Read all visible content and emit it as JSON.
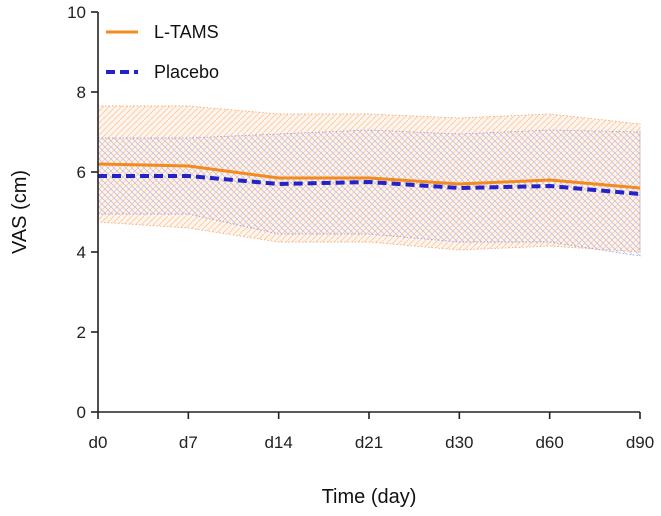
{
  "chart_data": {
    "type": "line",
    "title": "",
    "xlabel": "Time (day)",
    "ylabel": "VAS (cm)",
    "categories": [
      "d0",
      "d7",
      "d14",
      "d21",
      "d30",
      "d60",
      "d90"
    ],
    "ylim": [
      0,
      10
    ],
    "yticks": [
      0,
      2,
      4,
      6,
      8,
      10
    ],
    "grid": false,
    "legend_position": "top-left",
    "series": [
      {
        "name": "L-TAMS",
        "color": "#f28a1e",
        "style": "solid",
        "values": [
          6.2,
          6.15,
          5.85,
          5.85,
          5.7,
          5.8,
          5.6
        ],
        "upper": [
          7.65,
          7.65,
          7.45,
          7.45,
          7.35,
          7.45,
          7.2
        ],
        "lower": [
          4.75,
          4.6,
          4.25,
          4.25,
          4.05,
          4.15,
          4.0
        ]
      },
      {
        "name": "Placebo",
        "color": "#2323c8",
        "style": "dashed",
        "values": [
          5.9,
          5.9,
          5.7,
          5.75,
          5.6,
          5.65,
          5.45
        ],
        "upper": [
          6.85,
          6.85,
          6.95,
          7.05,
          6.95,
          7.05,
          7.0
        ],
        "lower": [
          4.95,
          4.95,
          4.45,
          4.45,
          4.25,
          4.25,
          3.9
        ]
      }
    ]
  }
}
